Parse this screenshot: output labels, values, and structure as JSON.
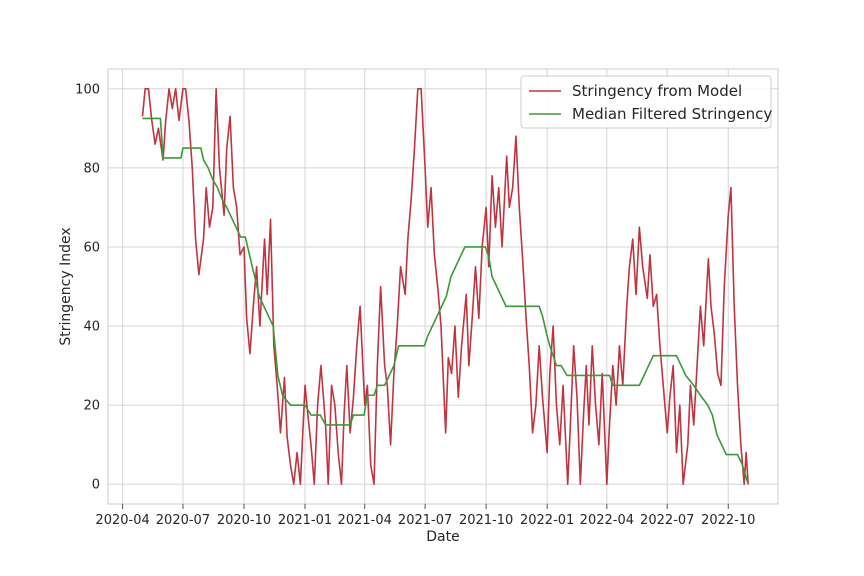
{
  "chart_data": {
    "type": "line",
    "title": "",
    "xlabel": "Date",
    "ylabel": "Stringency Index",
    "x_ticks": [
      "2020-04",
      "2020-07",
      "2020-10",
      "2021-01",
      "2021-04",
      "2021-07",
      "2021-10",
      "2022-01",
      "2022-04",
      "2022-07",
      "2022-10"
    ],
    "y_ticks": [
      0,
      20,
      40,
      60,
      80,
      100
    ],
    "xlim": [
      "2020-03-10",
      "2022-12-15"
    ],
    "ylim": [
      -5,
      105
    ],
    "grid": true,
    "legend_position": "top-right",
    "series": [
      {
        "name": "Stringency from Model",
        "color": "#c0343f",
        "points": [
          [
            "2020-05-01",
            93
          ],
          [
            "2020-05-05",
            100
          ],
          [
            "2020-05-10",
            100
          ],
          [
            "2020-05-15",
            92
          ],
          [
            "2020-05-20",
            86
          ],
          [
            "2020-05-25",
            90
          ],
          [
            "2020-06-01",
            82
          ],
          [
            "2020-06-05",
            92
          ],
          [
            "2020-06-10",
            100
          ],
          [
            "2020-06-15",
            95
          ],
          [
            "2020-06-20",
            100
          ],
          [
            "2020-06-25",
            92
          ],
          [
            "2020-07-01",
            100
          ],
          [
            "2020-07-05",
            100
          ],
          [
            "2020-07-10",
            92
          ],
          [
            "2020-07-15",
            80
          ],
          [
            "2020-07-20",
            62
          ],
          [
            "2020-07-25",
            53
          ],
          [
            "2020-08-01",
            62
          ],
          [
            "2020-08-05",
            75
          ],
          [
            "2020-08-10",
            65
          ],
          [
            "2020-08-15",
            70
          ],
          [
            "2020-08-20",
            100
          ],
          [
            "2020-08-25",
            80
          ],
          [
            "2020-09-01",
            68
          ],
          [
            "2020-09-05",
            85
          ],
          [
            "2020-09-10",
            93
          ],
          [
            "2020-09-15",
            75
          ],
          [
            "2020-09-20",
            70
          ],
          [
            "2020-09-25",
            58
          ],
          [
            "2020-10-01",
            60
          ],
          [
            "2020-10-05",
            42
          ],
          [
            "2020-10-10",
            33
          ],
          [
            "2020-10-15",
            45
          ],
          [
            "2020-10-20",
            55
          ],
          [
            "2020-10-25",
            40
          ],
          [
            "2020-11-01",
            62
          ],
          [
            "2020-11-05",
            48
          ],
          [
            "2020-11-10",
            67
          ],
          [
            "2020-11-15",
            35
          ],
          [
            "2020-11-20",
            25
          ],
          [
            "2020-11-25",
            13
          ],
          [
            "2020-12-01",
            27
          ],
          [
            "2020-12-05",
            12
          ],
          [
            "2020-12-10",
            5
          ],
          [
            "2020-12-15",
            0
          ],
          [
            "2020-12-20",
            8
          ],
          [
            "2020-12-25",
            0
          ],
          [
            "2021-01-01",
            25
          ],
          [
            "2021-01-05",
            18
          ],
          [
            "2021-01-10",
            10
          ],
          [
            "2021-01-15",
            0
          ],
          [
            "2021-01-20",
            20
          ],
          [
            "2021-01-25",
            30
          ],
          [
            "2021-02-01",
            15
          ],
          [
            "2021-02-05",
            0
          ],
          [
            "2021-02-10",
            25
          ],
          [
            "2021-02-15",
            20
          ],
          [
            "2021-02-20",
            8
          ],
          [
            "2021-02-25",
            0
          ],
          [
            "2021-03-01",
            18
          ],
          [
            "2021-03-05",
            30
          ],
          [
            "2021-03-10",
            13
          ],
          [
            "2021-03-15",
            22
          ],
          [
            "2021-03-20",
            35
          ],
          [
            "2021-03-25",
            45
          ],
          [
            "2021-04-01",
            20
          ],
          [
            "2021-04-05",
            25
          ],
          [
            "2021-04-10",
            5
          ],
          [
            "2021-04-15",
            0
          ],
          [
            "2021-04-20",
            30
          ],
          [
            "2021-04-25",
            50
          ],
          [
            "2021-05-01",
            30
          ],
          [
            "2021-05-05",
            25
          ],
          [
            "2021-05-10",
            10
          ],
          [
            "2021-05-15",
            28
          ],
          [
            "2021-05-20",
            40
          ],
          [
            "2021-05-25",
            55
          ],
          [
            "2021-06-01",
            48
          ],
          [
            "2021-06-05",
            62
          ],
          [
            "2021-06-10",
            72
          ],
          [
            "2021-06-15",
            85
          ],
          [
            "2021-06-20",
            100
          ],
          [
            "2021-06-25",
            100
          ],
          [
            "2021-07-01",
            80
          ],
          [
            "2021-07-05",
            65
          ],
          [
            "2021-07-10",
            75
          ],
          [
            "2021-07-15",
            58
          ],
          [
            "2021-07-20",
            50
          ],
          [
            "2021-07-25",
            40
          ],
          [
            "2021-08-01",
            13
          ],
          [
            "2021-08-05",
            32
          ],
          [
            "2021-08-10",
            28
          ],
          [
            "2021-08-15",
            40
          ],
          [
            "2021-08-20",
            22
          ],
          [
            "2021-08-25",
            35
          ],
          [
            "2021-09-01",
            48
          ],
          [
            "2021-09-05",
            30
          ],
          [
            "2021-09-10",
            42
          ],
          [
            "2021-09-15",
            55
          ],
          [
            "2021-09-20",
            42
          ],
          [
            "2021-09-25",
            60
          ],
          [
            "2021-10-01",
            70
          ],
          [
            "2021-10-05",
            55
          ],
          [
            "2021-10-10",
            78
          ],
          [
            "2021-10-15",
            65
          ],
          [
            "2021-10-20",
            75
          ],
          [
            "2021-10-25",
            60
          ],
          [
            "2021-11-01",
            83
          ],
          [
            "2021-11-05",
            70
          ],
          [
            "2021-11-10",
            75
          ],
          [
            "2021-11-15",
            88
          ],
          [
            "2021-11-20",
            70
          ],
          [
            "2021-11-25",
            57
          ],
          [
            "2021-12-01",
            40
          ],
          [
            "2021-12-05",
            30
          ],
          [
            "2021-12-10",
            13
          ],
          [
            "2021-12-15",
            20
          ],
          [
            "2021-12-20",
            35
          ],
          [
            "2021-12-25",
            22
          ],
          [
            "2022-01-01",
            8
          ],
          [
            "2022-01-05",
            28
          ],
          [
            "2022-01-10",
            40
          ],
          [
            "2022-01-15",
            20
          ],
          [
            "2022-01-20",
            10
          ],
          [
            "2022-01-25",
            25
          ],
          [
            "2022-02-01",
            0
          ],
          [
            "2022-02-05",
            15
          ],
          [
            "2022-02-10",
            35
          ],
          [
            "2022-02-15",
            22
          ],
          [
            "2022-02-20",
            0
          ],
          [
            "2022-02-25",
            18
          ],
          [
            "2022-03-01",
            30
          ],
          [
            "2022-03-05",
            15
          ],
          [
            "2022-03-10",
            35
          ],
          [
            "2022-03-15",
            20
          ],
          [
            "2022-03-20",
            10
          ],
          [
            "2022-03-25",
            28
          ],
          [
            "2022-04-01",
            0
          ],
          [
            "2022-04-05",
            15
          ],
          [
            "2022-04-10",
            30
          ],
          [
            "2022-04-15",
            20
          ],
          [
            "2022-04-20",
            35
          ],
          [
            "2022-04-25",
            25
          ],
          [
            "2022-05-01",
            45
          ],
          [
            "2022-05-05",
            55
          ],
          [
            "2022-05-10",
            62
          ],
          [
            "2022-05-15",
            48
          ],
          [
            "2022-05-20",
            65
          ],
          [
            "2022-05-25",
            55
          ],
          [
            "2022-06-01",
            47
          ],
          [
            "2022-06-05",
            58
          ],
          [
            "2022-06-10",
            45
          ],
          [
            "2022-06-15",
            48
          ],
          [
            "2022-06-20",
            35
          ],
          [
            "2022-06-25",
            25
          ],
          [
            "2022-07-01",
            13
          ],
          [
            "2022-07-05",
            22
          ],
          [
            "2022-07-10",
            30
          ],
          [
            "2022-07-15",
            8
          ],
          [
            "2022-07-20",
            20
          ],
          [
            "2022-07-25",
            0
          ],
          [
            "2022-08-01",
            10
          ],
          [
            "2022-08-05",
            25
          ],
          [
            "2022-08-10",
            15
          ],
          [
            "2022-08-15",
            30
          ],
          [
            "2022-08-20",
            45
          ],
          [
            "2022-08-25",
            35
          ],
          [
            "2022-09-01",
            57
          ],
          [
            "2022-09-05",
            45
          ],
          [
            "2022-09-10",
            38
          ],
          [
            "2022-09-15",
            28
          ],
          [
            "2022-09-20",
            25
          ],
          [
            "2022-09-25",
            50
          ],
          [
            "2022-10-01",
            68
          ],
          [
            "2022-10-05",
            75
          ],
          [
            "2022-10-10",
            45
          ],
          [
            "2022-10-15",
            25
          ],
          [
            "2022-10-20",
            10
          ],
          [
            "2022-10-25",
            0
          ],
          [
            "2022-10-28",
            8
          ],
          [
            "2022-10-31",
            0
          ]
        ]
      },
      {
        "name": "Median Filtered Stringency",
        "color": "#3a9a35",
        "points": [
          [
            "2020-05-01",
            92.5
          ],
          [
            "2020-05-28",
            92.5
          ],
          [
            "2020-06-01",
            82.5
          ],
          [
            "2020-06-28",
            82.5
          ],
          [
            "2020-07-01",
            85
          ],
          [
            "2020-07-28",
            85
          ],
          [
            "2020-08-01",
            82
          ],
          [
            "2020-08-08",
            80
          ],
          [
            "2020-08-15",
            77
          ],
          [
            "2020-08-22",
            75
          ],
          [
            "2020-08-29",
            72
          ],
          [
            "2020-09-05",
            70
          ],
          [
            "2020-09-12",
            67.5
          ],
          [
            "2020-09-19",
            65
          ],
          [
            "2020-09-26",
            62.5
          ],
          [
            "2020-10-03",
            62.5
          ],
          [
            "2020-10-10",
            57.5
          ],
          [
            "2020-10-17",
            52.5
          ],
          [
            "2020-10-24",
            47.5
          ],
          [
            "2020-10-31",
            45
          ],
          [
            "2020-11-07",
            42.5
          ],
          [
            "2020-11-14",
            40
          ],
          [
            "2020-11-21",
            27.5
          ],
          [
            "2020-11-28",
            22.5
          ],
          [
            "2020-12-10",
            20
          ],
          [
            "2021-01-01",
            20
          ],
          [
            "2021-01-10",
            17.5
          ],
          [
            "2021-01-24",
            17.5
          ],
          [
            "2021-02-01",
            15
          ],
          [
            "2021-03-10",
            15
          ],
          [
            "2021-03-15",
            17.5
          ],
          [
            "2021-03-31",
            17.5
          ],
          [
            "2021-04-05",
            22.5
          ],
          [
            "2021-04-15",
            22.5
          ],
          [
            "2021-04-20",
            25
          ],
          [
            "2021-05-01",
            25
          ],
          [
            "2021-05-08",
            27.5
          ],
          [
            "2021-05-15",
            30
          ],
          [
            "2021-05-22",
            35
          ],
          [
            "2021-06-30",
            35
          ],
          [
            "2021-07-05",
            37.5
          ],
          [
            "2021-07-12",
            40
          ],
          [
            "2021-07-19",
            42.5
          ],
          [
            "2021-07-26",
            45
          ],
          [
            "2021-08-02",
            47.5
          ],
          [
            "2021-08-09",
            52.5
          ],
          [
            "2021-08-16",
            55
          ],
          [
            "2021-08-23",
            57.5
          ],
          [
            "2021-08-30",
            60
          ],
          [
            "2021-09-30",
            60
          ],
          [
            "2021-10-05",
            57.5
          ],
          [
            "2021-10-10",
            52.5
          ],
          [
            "2021-10-17",
            50
          ],
          [
            "2021-10-24",
            47.5
          ],
          [
            "2021-10-31",
            45
          ],
          [
            "2021-12-20",
            45
          ],
          [
            "2021-12-25",
            42.5
          ],
          [
            "2022-01-01",
            37.5
          ],
          [
            "2022-01-05",
            35
          ],
          [
            "2022-01-10",
            32.5
          ],
          [
            "2022-01-15",
            30
          ],
          [
            "2022-01-22",
            30
          ],
          [
            "2022-01-31",
            27.5
          ],
          [
            "2022-04-05",
            27.5
          ],
          [
            "2022-04-10",
            25
          ],
          [
            "2022-05-20",
            25
          ],
          [
            "2022-05-27",
            27.5
          ],
          [
            "2022-06-03",
            30
          ],
          [
            "2022-06-10",
            32.5
          ],
          [
            "2022-07-15",
            32.5
          ],
          [
            "2022-07-22",
            30
          ],
          [
            "2022-07-29",
            27.5
          ],
          [
            "2022-08-10",
            25
          ],
          [
            "2022-08-20",
            22.5
          ],
          [
            "2022-08-31",
            20
          ],
          [
            "2022-09-07",
            17.5
          ],
          [
            "2022-09-14",
            12.5
          ],
          [
            "2022-09-21",
            10
          ],
          [
            "2022-09-28",
            7.5
          ],
          [
            "2022-10-15",
            7.5
          ],
          [
            "2022-10-22",
            5
          ],
          [
            "2022-10-31",
            0
          ]
        ]
      }
    ]
  }
}
